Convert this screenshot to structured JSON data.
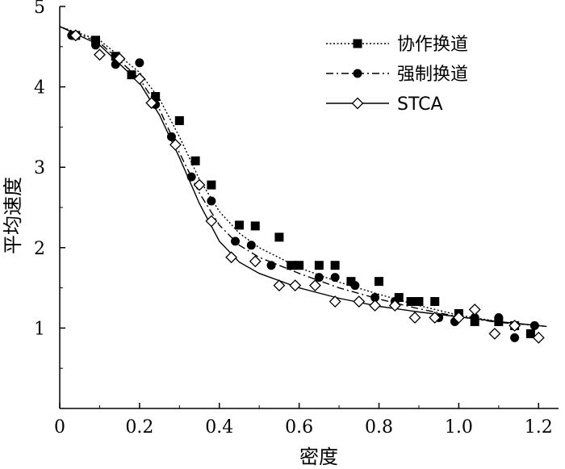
{
  "chart_data": {
    "type": "scatter",
    "xlabel": "密度",
    "ylabel": "平均速度",
    "xlim": [
      0,
      1.25
    ],
    "ylim": [
      0,
      5
    ],
    "x_ticks": [
      0,
      0.2,
      0.4,
      0.6,
      0.8,
      1.0,
      1.2
    ],
    "x_tick_labels": [
      "0",
      "0.2",
      "0.4",
      "0.6",
      "0.8",
      "1.0",
      "1.2"
    ],
    "y_ticks": [
      1,
      2,
      3,
      4,
      5
    ],
    "y_tick_labels": [
      "1",
      "2",
      "3",
      "4",
      "5"
    ],
    "legend_position": "top-right",
    "series": [
      {
        "name": "协作换道",
        "marker": "square",
        "line_style": "dotted",
        "points": [
          [
            0.04,
            4.64
          ],
          [
            0.09,
            4.58
          ],
          [
            0.14,
            4.38
          ],
          [
            0.18,
            4.15
          ],
          [
            0.24,
            3.88
          ],
          [
            0.3,
            3.58
          ],
          [
            0.34,
            3.08
          ],
          [
            0.38,
            2.78
          ],
          [
            0.45,
            2.28
          ],
          [
            0.49,
            2.27
          ],
          [
            0.55,
            2.13
          ],
          [
            0.58,
            1.78
          ],
          [
            0.6,
            1.78
          ],
          [
            0.65,
            1.78
          ],
          [
            0.69,
            1.78
          ],
          [
            0.73,
            1.58
          ],
          [
            0.8,
            1.58
          ],
          [
            0.85,
            1.38
          ],
          [
            0.88,
            1.33
          ],
          [
            0.9,
            1.33
          ],
          [
            0.94,
            1.33
          ],
          [
            1.0,
            1.18
          ],
          [
            1.04,
            1.08
          ],
          [
            1.1,
            1.08
          ],
          [
            1.14,
            1.03
          ],
          [
            1.18,
            0.93
          ]
        ],
        "curve": [
          [
            0,
            4.75
          ],
          [
            0.1,
            4.58
          ],
          [
            0.2,
            4.18
          ],
          [
            0.25,
            3.85
          ],
          [
            0.3,
            3.38
          ],
          [
            0.35,
            2.85
          ],
          [
            0.4,
            2.45
          ],
          [
            0.45,
            2.18
          ],
          [
            0.5,
            2.0
          ],
          [
            0.6,
            1.75
          ],
          [
            0.7,
            1.57
          ],
          [
            0.8,
            1.42
          ],
          [
            0.9,
            1.28
          ],
          [
            1.0,
            1.16
          ],
          [
            1.1,
            1.08
          ],
          [
            1.2,
            1.03
          ],
          [
            1.22,
            1.02
          ]
        ]
      },
      {
        "name": "强制换道",
        "marker": "circle",
        "line_style": "dash-dot",
        "points": [
          [
            0.03,
            4.64
          ],
          [
            0.09,
            4.52
          ],
          [
            0.14,
            4.28
          ],
          [
            0.2,
            4.3
          ],
          [
            0.24,
            3.78
          ],
          [
            0.28,
            3.38
          ],
          [
            0.33,
            2.88
          ],
          [
            0.38,
            2.58
          ],
          [
            0.44,
            2.08
          ],
          [
            0.48,
            2.03
          ],
          [
            0.53,
            1.78
          ],
          [
            0.59,
            1.78
          ],
          [
            0.65,
            1.63
          ],
          [
            0.69,
            1.63
          ],
          [
            0.74,
            1.53
          ],
          [
            0.79,
            1.38
          ],
          [
            0.84,
            1.33
          ],
          [
            0.88,
            1.33
          ],
          [
            0.9,
            1.33
          ],
          [
            0.95,
            1.13
          ],
          [
            0.99,
            1.08
          ],
          [
            1.04,
            1.13
          ],
          [
            1.1,
            1.13
          ],
          [
            1.14,
            0.88
          ],
          [
            1.19,
            1.03
          ]
        ],
        "curve": [
          [
            0,
            4.75
          ],
          [
            0.1,
            4.55
          ],
          [
            0.2,
            4.1
          ],
          [
            0.25,
            3.72
          ],
          [
            0.3,
            3.18
          ],
          [
            0.35,
            2.68
          ],
          [
            0.4,
            2.28
          ],
          [
            0.45,
            2.03
          ],
          [
            0.5,
            1.88
          ],
          [
            0.6,
            1.68
          ],
          [
            0.7,
            1.5
          ],
          [
            0.8,
            1.36
          ],
          [
            0.9,
            1.24
          ],
          [
            1.0,
            1.14
          ],
          [
            1.1,
            1.07
          ],
          [
            1.2,
            1.03
          ],
          [
            1.22,
            1.02
          ]
        ]
      },
      {
        "name": "STCA",
        "marker": "diamond",
        "line_style": "solid",
        "points": [
          [
            0.04,
            4.64
          ],
          [
            0.1,
            4.4
          ],
          [
            0.15,
            4.35
          ],
          [
            0.2,
            4.1
          ],
          [
            0.23,
            3.8
          ],
          [
            0.29,
            3.28
          ],
          [
            0.35,
            2.78
          ],
          [
            0.38,
            2.33
          ],
          [
            0.43,
            1.88
          ],
          [
            0.49,
            1.83
          ],
          [
            0.55,
            1.53
          ],
          [
            0.59,
            1.53
          ],
          [
            0.64,
            1.53
          ],
          [
            0.69,
            1.33
          ],
          [
            0.75,
            1.33
          ],
          [
            0.79,
            1.28
          ],
          [
            0.84,
            1.28
          ],
          [
            0.89,
            1.13
          ],
          [
            0.94,
            1.13
          ],
          [
            1.0,
            1.13
          ],
          [
            1.04,
            1.23
          ],
          [
            1.09,
            0.93
          ],
          [
            1.14,
            1.03
          ],
          [
            1.2,
            0.88
          ]
        ],
        "curve": [
          [
            0,
            4.75
          ],
          [
            0.1,
            4.52
          ],
          [
            0.2,
            4.05
          ],
          [
            0.25,
            3.65
          ],
          [
            0.3,
            3.12
          ],
          [
            0.35,
            2.55
          ],
          [
            0.4,
            2.08
          ],
          [
            0.45,
            1.82
          ],
          [
            0.5,
            1.68
          ],
          [
            0.6,
            1.5
          ],
          [
            0.7,
            1.37
          ],
          [
            0.8,
            1.27
          ],
          [
            0.9,
            1.2
          ],
          [
            1.0,
            1.14
          ],
          [
            1.1,
            1.08
          ],
          [
            1.2,
            1.03
          ],
          [
            1.22,
            1.02
          ]
        ]
      }
    ]
  }
}
